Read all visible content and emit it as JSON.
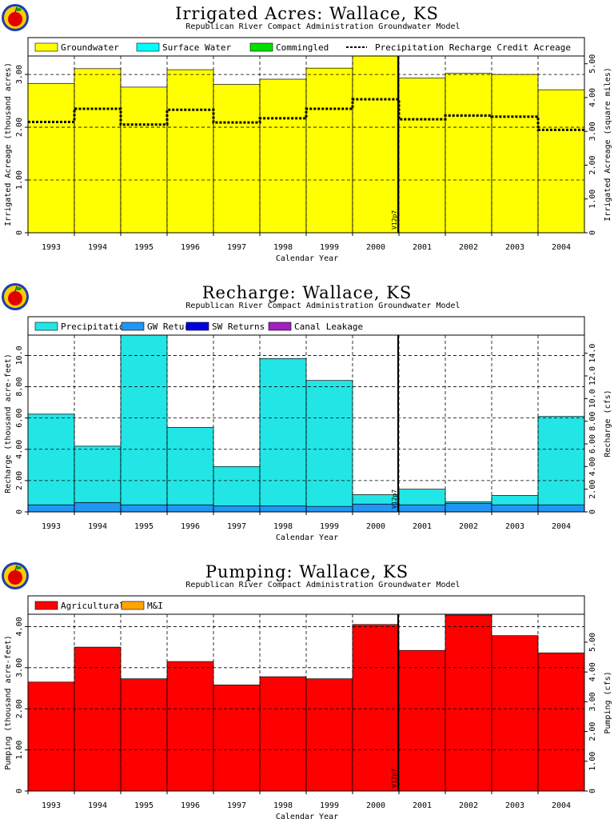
{
  "colors": {
    "groundwater": "#ffff00",
    "surface_water": "#00ffff",
    "commingled": "#00e000",
    "precip_recharge": "#22e6e6",
    "gw_returns": "#2196f3",
    "sw_returns": "#0000dd",
    "canal_leakage": "#a020c0",
    "agricultural": "#ff0000",
    "mi": "#ffa500"
  },
  "logo_icon": "apple-logo-icon",
  "chart_data": [
    {
      "type": "bar",
      "title": "Irrigated Acres: Wallace, KS",
      "subtitle": "Republican River Compact Administration Groundwater Model",
      "xlabel": "Calendar Year",
      "ylabel": "Irrigated Acreage (thousand acres)",
      "ylabel_right": "Irrigated Acreage (square miles)",
      "categories": [
        "1993",
        "1994",
        "1995",
        "1996",
        "1997",
        "1998",
        "1999",
        "2000",
        "2001",
        "2002",
        "2003",
        "2004"
      ],
      "ylim": [
        0,
        3.35
      ],
      "yticks": [
        "0",
        "1.00",
        "2.00",
        "3.00"
      ],
      "y2lim": [
        0,
        5.23
      ],
      "y2ticks": [
        "0",
        "1.00",
        "2.00",
        "3.00",
        "4.00",
        "5.00"
      ],
      "grid": true,
      "vline_label": "V12p7",
      "legend": [
        "Groundwater",
        "Surface Water",
        "Commingled",
        "Precipitation Recharge Credit Acreage"
      ],
      "series": [
        {
          "name": "Groundwater",
          "values": [
            2.83,
            3.11,
            2.76,
            3.09,
            2.81,
            2.91,
            3.12,
            3.35,
            2.93,
            3.02,
            3.0,
            2.71
          ]
        },
        {
          "name": "Surface Water",
          "values": [
            0,
            0,
            0,
            0,
            0,
            0,
            0,
            0,
            0,
            0,
            0,
            0
          ]
        },
        {
          "name": "Commingled",
          "values": [
            0,
            0,
            0,
            0,
            0,
            0,
            0,
            0,
            0,
            0,
            0,
            0
          ]
        }
      ],
      "line_series": {
        "name": "Precipitation Recharge Credit Acreage",
        "values": [
          2.1,
          2.35,
          2.05,
          2.33,
          2.09,
          2.17,
          2.35,
          2.53,
          2.15,
          2.22,
          2.2,
          1.95
        ]
      }
    },
    {
      "type": "bar",
      "title": "Recharge: Wallace, KS",
      "subtitle": "Republican River Compact Administration Groundwater Model",
      "xlabel": "Calendar Year",
      "ylabel": "Recharge (thousand acre-feet)",
      "ylabel_right": "Recharge (cfs)",
      "categories": [
        "1993",
        "1994",
        "1995",
        "1996",
        "1997",
        "1998",
        "1999",
        "2000",
        "2001",
        "2002",
        "2003",
        "2004"
      ],
      "ylim": [
        0,
        11.3
      ],
      "yticks": [
        "0",
        "2.00",
        "4.00",
        "6.00",
        "8.00",
        "10.0"
      ],
      "y2lim": [
        0,
        15.6
      ],
      "y2ticks": [
        "0",
        "2.00",
        "4.00",
        "6.00",
        "8.00",
        "10.0",
        "12.0",
        "14.0"
      ],
      "grid": true,
      "vline_label": "V12p7",
      "legend": [
        "Precipitation",
        "GW Returns",
        "SW Returns",
        "Canal Leakage"
      ],
      "series": [
        {
          "name": "GW Returns",
          "values": [
            0.45,
            0.6,
            0.45,
            0.45,
            0.38,
            0.38,
            0.35,
            0.5,
            0.45,
            0.55,
            0.45,
            0.45
          ]
        },
        {
          "name": "Precipitation",
          "values": [
            5.8,
            3.6,
            10.85,
            4.95,
            2.52,
            9.42,
            8.05,
            0.6,
            1.0,
            0.1,
            0.6,
            5.65
          ]
        },
        {
          "name": "SW Returns",
          "values": [
            0,
            0,
            0,
            0,
            0,
            0,
            0,
            0,
            0,
            0,
            0,
            0
          ]
        },
        {
          "name": "Canal Leakage",
          "values": [
            0,
            0,
            0,
            0,
            0,
            0,
            0,
            0,
            0,
            0,
            0,
            0
          ]
        }
      ]
    },
    {
      "type": "bar",
      "title": "Pumping: Wallace, KS",
      "subtitle": "Republican River Compact Administration Groundwater Model",
      "xlabel": "Calendar Year",
      "ylabel": "Pumping (thousand acre-feet)",
      "ylabel_right": "Pumping (cfs)",
      "categories": [
        "1993",
        "1994",
        "1995",
        "1996",
        "1997",
        "1998",
        "1999",
        "2000",
        "2001",
        "2002",
        "2003",
        "2004"
      ],
      "ylim": [
        0,
        4.3
      ],
      "yticks": [
        "0",
        "1.00",
        "2.00",
        "3.00",
        "4.00"
      ],
      "y2lim": [
        0,
        5.94
      ],
      "y2ticks": [
        "0",
        "1.00",
        "2.00",
        "3.00",
        "4.00",
        "5.00"
      ],
      "grid": true,
      "vline_label": "V12p7",
      "legend": [
        "Agricultural",
        "M&I"
      ],
      "series": [
        {
          "name": "Agricultural",
          "values": [
            2.65,
            3.5,
            2.73,
            3.15,
            2.58,
            2.78,
            2.73,
            4.05,
            3.42,
            4.28,
            3.78,
            3.36
          ]
        },
        {
          "name": "M&I",
          "values": [
            0,
            0,
            0,
            0,
            0,
            0,
            0,
            0,
            0,
            0,
            0,
            0
          ]
        }
      ]
    }
  ]
}
